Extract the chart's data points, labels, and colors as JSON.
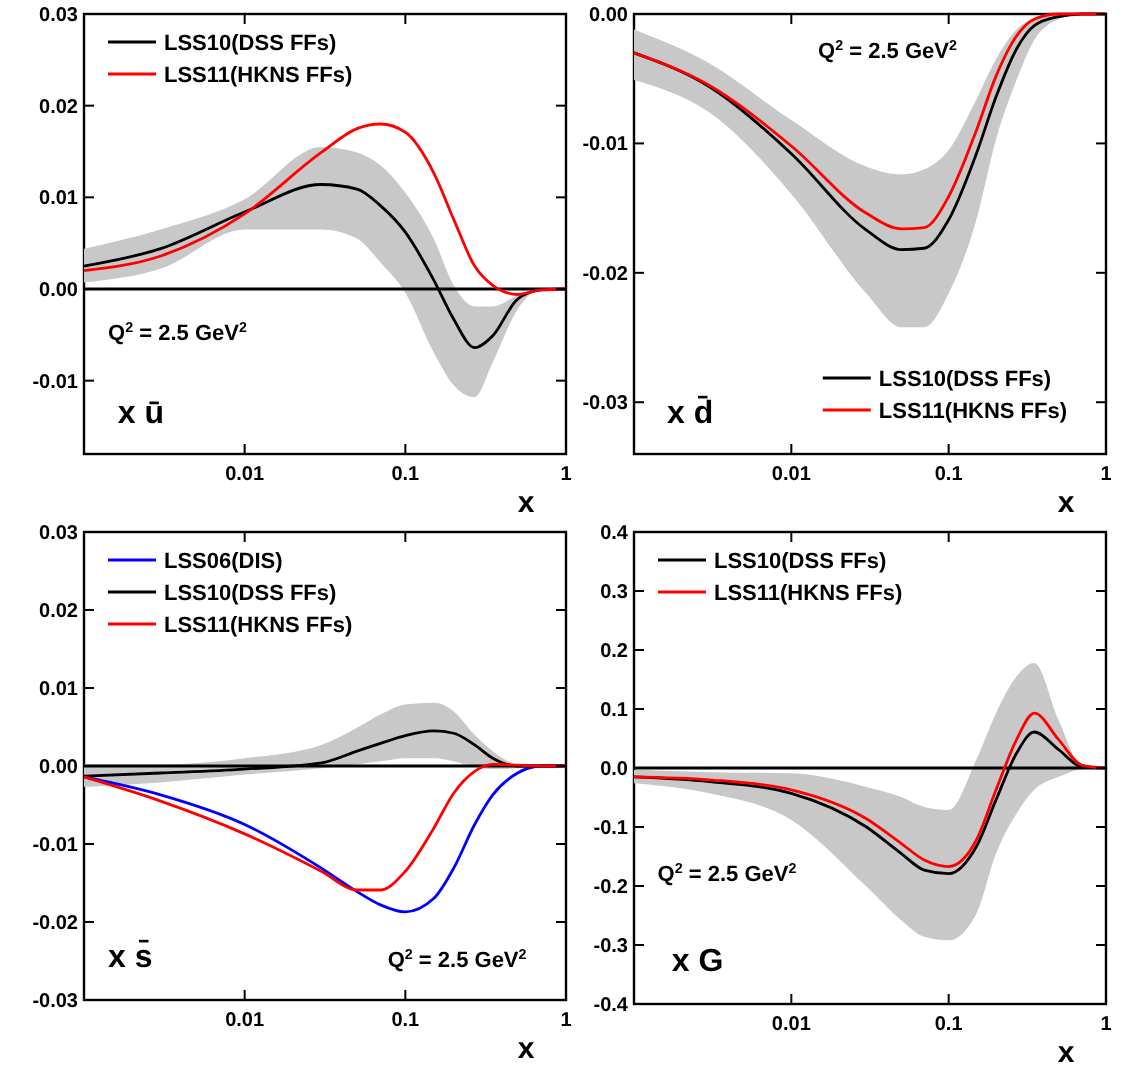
{
  "chart_data": [
    {
      "type": "line",
      "xlabel": "x",
      "log": "x",
      "xlim": [
        0.001,
        1
      ],
      "xticks": [
        0.01,
        0.1,
        1
      ],
      "ylim": [
        -0.018,
        0.03
      ],
      "yticks": [
        {
          "value": -0.01,
          "label": "-0.01"
        },
        {
          "value": 0,
          "label": "0.00"
        },
        0.01,
        0.02,
        0.03
      ],
      "legend": "top left",
      "grid": false,
      "marker": "none",
      "line_style": "solid",
      "annotations": [
        "Q$^{2}$ = 2.5 GeV$^{2}$",
        "x ū"
      ],
      "ref_lines": [
        {
          "axis": "y",
          "value": 0,
          "color": "#000000"
        }
      ],
      "x": [
        0.001,
        0.003,
        0.01,
        0.03,
        0.05,
        0.07,
        0.1,
        0.15,
        0.2,
        0.27,
        0.35,
        0.5,
        0.7,
        1
      ],
      "series": [
        {
          "name": "LSS10(DSS FFs)",
          "color": "#000000",
          "values": [
            0.0025,
            0.0044,
            0.0084,
            0.0114,
            0.0109,
            0.0091,
            0.0062,
            0.001,
            -0.0033,
            -0.0064,
            -0.0051,
            -0.0011,
            -0.0001,
            0
          ],
          "lower": [
            0.0007,
            0.0022,
            0.0065,
            0.0065,
            0.0055,
            0.0029,
            -0.0004,
            -0.0069,
            -0.0105,
            -0.0118,
            -0.008,
            -0.0022,
            0,
            0
          ],
          "upper": [
            0.0044,
            0.0065,
            0.0098,
            0.0155,
            0.0149,
            0.0135,
            0.0105,
            0.0055,
            0.0004,
            -0.0019,
            -0.0019,
            -0.0007,
            0,
            0
          ]
        },
        {
          "name": "LSS11(HKNS FFs)",
          "color": "#ff0000",
          "values": [
            0.002,
            0.0036,
            0.0082,
            0.0149,
            0.0175,
            0.018,
            0.0171,
            0.0127,
            0.0076,
            0.0025,
            0.0004,
            -0.0006,
            -0.0001,
            0
          ]
        }
      ]
    },
    {
      "type": "line",
      "xlabel": "x",
      "log": "x",
      "xlim": [
        0.001,
        1
      ],
      "xticks": [
        0.01,
        0.1,
        1
      ],
      "ylim": [
        -0.034,
        0
      ],
      "yticks": [
        {
          "value": -0.03,
          "label": "-0.03"
        },
        {
          "value": -0.02,
          "label": "-0.02"
        },
        {
          "value": -0.01,
          "label": "-0.01"
        },
        {
          "value": 0,
          "label": "0.00"
        }
      ],
      "legend": "bottom right",
      "grid": false,
      "marker": "none",
      "line_style": "solid",
      "annotations": [
        "Q$^{2}$ = 2.5 GeV$^{2}$",
        "x d̄"
      ],
      "x": [
        0.001,
        0.003,
        0.01,
        0.03,
        0.05,
        0.07,
        0.1,
        0.15,
        0.2,
        0.27,
        0.35,
        0.5,
        0.7,
        1
      ],
      "series": [
        {
          "name": "LSS10(DSS FFs)",
          "color": "#000000",
          "values": [
            -0.003,
            -0.0056,
            -0.0108,
            -0.0167,
            -0.0182,
            -0.0181,
            -0.0159,
            -0.0108,
            -0.0064,
            -0.0027,
            -0.0009,
            -0.0002,
            0,
            0
          ],
          "lower": [
            -0.0051,
            -0.0076,
            -0.0139,
            -0.0216,
            -0.0242,
            -0.0242,
            -0.0216,
            -0.0159,
            -0.0097,
            -0.0051,
            -0.002,
            -0.0004,
            0,
            0
          ],
          "upper": [
            -0.0012,
            -0.0038,
            -0.0082,
            -0.0118,
            -0.0124,
            -0.012,
            -0.0105,
            -0.0066,
            -0.0035,
            -0.0012,
            -0.0003,
            0,
            0,
            0
          ]
        },
        {
          "name": "LSS11(HKNS FFs)",
          "color": "#ff0000",
          "values": [
            -0.003,
            -0.0055,
            -0.0102,
            -0.0154,
            -0.0166,
            -0.0165,
            -0.0141,
            -0.009,
            -0.0048,
            -0.0017,
            -0.0004,
            0,
            0,
            0
          ]
        }
      ]
    },
    {
      "type": "line",
      "xlabel": "x",
      "log": "x",
      "xlim": [
        0.001,
        1
      ],
      "xticks": [
        0.01,
        0.1,
        1
      ],
      "ylim": [
        -0.03,
        0.03
      ],
      "yticks": [
        {
          "value": -0.03,
          "label": "-0.03"
        },
        {
          "value": -0.02,
          "label": "-0.02"
        },
        {
          "value": -0.01,
          "label": "-0.01"
        },
        {
          "value": 0,
          "label": "0.00"
        },
        0.01,
        0.02,
        0.03
      ],
      "legend": "top left",
      "grid": false,
      "marker": "none",
      "line_style": "solid",
      "annotations": [
        "Q$^{2}$ = 2.5 GeV$^{2}$",
        "x s̄"
      ],
      "ref_lines": [
        {
          "axis": "y",
          "value": 0,
          "color": "#000000"
        }
      ],
      "x": [
        0.001,
        0.003,
        0.01,
        0.03,
        0.05,
        0.07,
        0.1,
        0.15,
        0.2,
        0.27,
        0.35,
        0.5,
        0.7,
        1
      ],
      "series": [
        {
          "name": "LSS06(DIS)",
          "color": "#0000ff",
          "values": [
            -0.0014,
            -0.0037,
            -0.0075,
            -0.0131,
            -0.0161,
            -0.0178,
            -0.0187,
            -0.017,
            -0.0131,
            -0.0075,
            -0.0037,
            -0.0009,
            0,
            0
          ]
        },
        {
          "name": "LSS10(DSS FFs)",
          "color": "#000000",
          "values": [
            -0.0013,
            -0.0009,
            -0.0004,
            0.0004,
            0.0019,
            0.0029,
            0.0039,
            0.0045,
            0.0042,
            0.0027,
            0.001,
            0,
            0,
            0
          ],
          "lower": [
            -0.0027,
            -0.0021,
            -0.0011,
            -0.0003,
            0.0002,
            0.0006,
            0.001,
            0.001,
            0.0006,
            -0.0001,
            -0.0004,
            -0.0003,
            0,
            0
          ],
          "upper": [
            0.0002,
            0.0002,
            0.001,
            0.0027,
            0.0049,
            0.0066,
            0.0079,
            0.0081,
            0.007,
            0.004,
            0.0019,
            0.0002,
            0,
            0
          ]
        },
        {
          "name": "LSS11(HKNS FFs)",
          "color": "#ff0000",
          "values": [
            -0.0014,
            -0.0045,
            -0.0087,
            -0.0135,
            -0.0159,
            -0.0159,
            -0.0135,
            -0.008,
            -0.0035,
            -0.0007,
            0.0002,
            0.0001,
            0,
            0
          ]
        }
      ]
    },
    {
      "type": "line",
      "xlabel": "x",
      "log": "x",
      "xlim": [
        0.001,
        1
      ],
      "xticks": [
        0.01,
        0.1,
        1
      ],
      "ylim": [
        -0.4,
        0.4
      ],
      "yticks": [
        -0.4,
        -0.3,
        -0.2,
        -0.1,
        {
          "value": 0,
          "label": "0.0"
        },
        0.1,
        0.2,
        0.3,
        0.4
      ],
      "legend": "top left",
      "grid": false,
      "marker": "none",
      "line_style": "solid",
      "annotations": [
        "Q$^{2}$ = 2.5 GeV$^{2}$",
        "x G"
      ],
      "ref_lines": [
        {
          "axis": "y",
          "value": 0,
          "color": "#000000"
        }
      ],
      "x": [
        0.001,
        0.003,
        0.01,
        0.03,
        0.05,
        0.07,
        0.1,
        0.15,
        0.2,
        0.27,
        0.35,
        0.5,
        0.7,
        1
      ],
      "series": [
        {
          "name": "LSS10(DSS FFs)",
          "color": "#000000",
          "values": [
            -0.015,
            -0.023,
            -0.043,
            -0.1,
            -0.145,
            -0.173,
            -0.179,
            -0.133,
            -0.054,
            0.025,
            0.061,
            0.031,
            0.002,
            0
          ],
          "lower": [
            -0.026,
            -0.043,
            -0.088,
            -0.201,
            -0.258,
            -0.286,
            -0.292,
            -0.247,
            -0.145,
            -0.077,
            -0.037,
            -0.015,
            -0.002,
            0
          ],
          "upper": [
            -0.003,
            -0.007,
            -0.009,
            -0.032,
            -0.049,
            -0.066,
            -0.071,
            0.014,
            0.093,
            0.155,
            0.178,
            0.081,
            0.005,
            0
          ]
        },
        {
          "name": "LSS11(HKNS FFs)",
          "color": "#ff0000",
          "values": [
            -0.015,
            -0.02,
            -0.037,
            -0.086,
            -0.128,
            -0.156,
            -0.167,
            -0.122,
            -0.037,
            0.048,
            0.093,
            0.048,
            0.005,
            0
          ]
        }
      ]
    }
  ]
}
